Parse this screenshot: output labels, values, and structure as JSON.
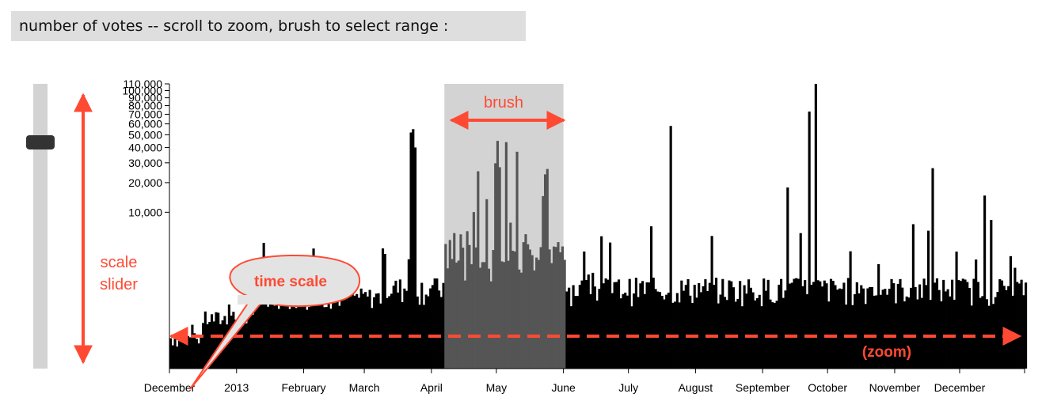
{
  "caption": "number of votes -- scroll to zoom, brush to select range :",
  "colors": {
    "bars": "#000000",
    "bars_in_brush": "#555555",
    "brush_fill": "#d3d3d3",
    "annotation": "#ff4a33",
    "slider_track": "#d3d3d3",
    "slider_handle": "#333333"
  },
  "annotations": {
    "brush": "brush",
    "scale_slider_line1": "scale",
    "scale_slider_line2": "slider",
    "time_scale": "time scale",
    "zoom": "(zoom)"
  },
  "scale_slider": {
    "value": 0.19
  },
  "chart_data": {
    "type": "bar",
    "title": "",
    "xlabel": "",
    "ylabel": "",
    "y_scale": "power",
    "ylim": [
      0,
      110000
    ],
    "y_ticks": [
      10000,
      20000,
      30000,
      40000,
      50000,
      60000,
      70000,
      80000,
      90000,
      100000,
      110000
    ],
    "y_tick_labels": [
      "10,000",
      "20,000",
      "30,000",
      "40,000",
      "50,000",
      "60,000",
      "70,000",
      "80,000",
      "90,000",
      "100,000",
      "110,000"
    ],
    "x_range": [
      "2012-12-01",
      "2013-12-31"
    ],
    "x_ticks": [
      "2012-12-01",
      "2013-01-01",
      "2013-02-01",
      "2013-03-01",
      "2013-04-01",
      "2013-05-01",
      "2013-06-01",
      "2013-07-01",
      "2013-08-01",
      "2013-09-01",
      "2013-10-01",
      "2013-11-01",
      "2013-12-01"
    ],
    "x_tick_labels": [
      "December",
      "2013",
      "February",
      "March",
      "April",
      "May",
      "June",
      "July",
      "August",
      "September",
      "October",
      "November",
      "December"
    ],
    "brush_range": [
      "2013-04-07",
      "2013-06-01"
    ],
    "grid": false,
    "legend": "none",
    "peaks": [
      {
        "date": "2013-03-22",
        "value": 52000
      },
      {
        "date": "2013-03-23",
        "value": 55000
      },
      {
        "date": "2013-03-24",
        "value": 40000
      },
      {
        "date": "2013-05-01",
        "value": 45000
      },
      {
        "date": "2013-05-05",
        "value": 44000
      },
      {
        "date": "2013-05-10",
        "value": 37000
      },
      {
        "date": "2013-07-20",
        "value": 58000
      },
      {
        "date": "2013-09-12",
        "value": 18000
      },
      {
        "date": "2013-09-22",
        "value": 73000
      },
      {
        "date": "2013-09-25",
        "value": 110000
      },
      {
        "date": "2013-11-18",
        "value": 27000
      },
      {
        "date": "2013-12-12",
        "value": 15000
      }
    ]
  }
}
